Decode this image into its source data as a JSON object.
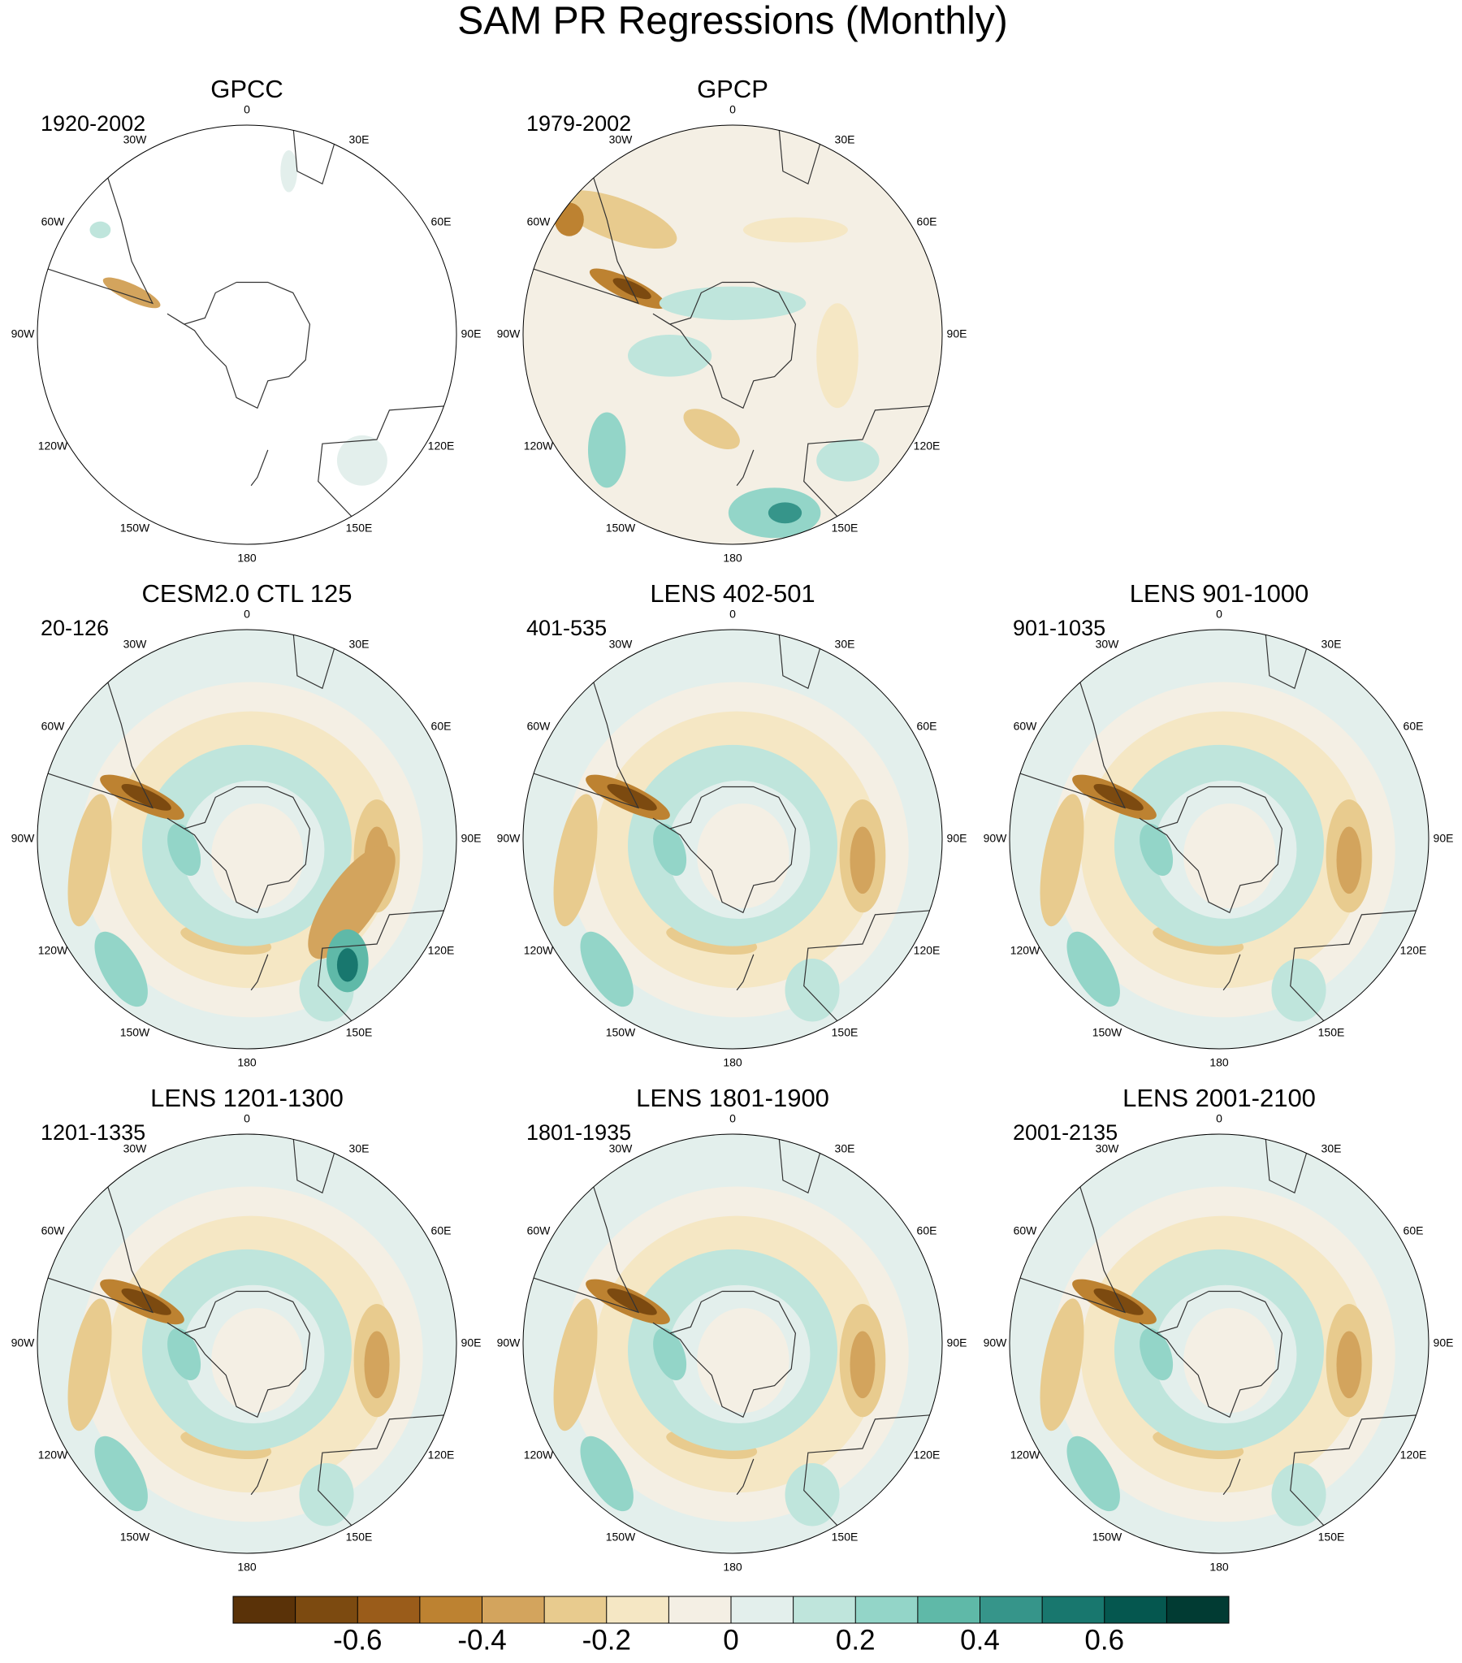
{
  "title": "SAM PR Regressions (Monthly)",
  "panels": [
    {
      "title": "GPCC",
      "period": "1920-2002"
    },
    {
      "title": "GPCP",
      "period": "1979-2002"
    },
    {
      "title": "CESM2.0 CTL 125",
      "period": "20-126"
    },
    {
      "title": "LENS 402-501",
      "period": "401-535"
    },
    {
      "title": "LENS 901-1000",
      "period": "901-1035"
    },
    {
      "title": "LENS 1201-1300",
      "period": "1201-1335"
    },
    {
      "title": "LENS 1801-1900",
      "period": "1801-1935"
    },
    {
      "title": "LENS 2001-2100",
      "period": "2001-2135"
    }
  ],
  "longitude_labels": [
    "0",
    "30E",
    "60E",
    "90E",
    "120E",
    "150E",
    "180",
    "150W",
    "120W",
    "90W",
    "60W",
    "30W"
  ],
  "colorbar": {
    "levels": [
      -0.7,
      -0.6,
      -0.5,
      -0.4,
      -0.3,
      -0.2,
      -0.1,
      0,
      0.1,
      0.2,
      0.3,
      0.4,
      0.5,
      0.6,
      0.7
    ],
    "ticks": [
      -0.6,
      -0.4,
      -0.2,
      0,
      0.2,
      0.4,
      0.6
    ],
    "colors": [
      "#5a3208",
      "#7c4a10",
      "#9a5c1a",
      "#bd8231",
      "#d3a45d",
      "#e8cb8e",
      "#f5e7c4",
      "#f4efe4",
      "#e3efec",
      "#bfe5dc",
      "#93d5c8",
      "#5fb9a8",
      "#36958a",
      "#18776e",
      "#05574f",
      "#013b33"
    ]
  }
}
